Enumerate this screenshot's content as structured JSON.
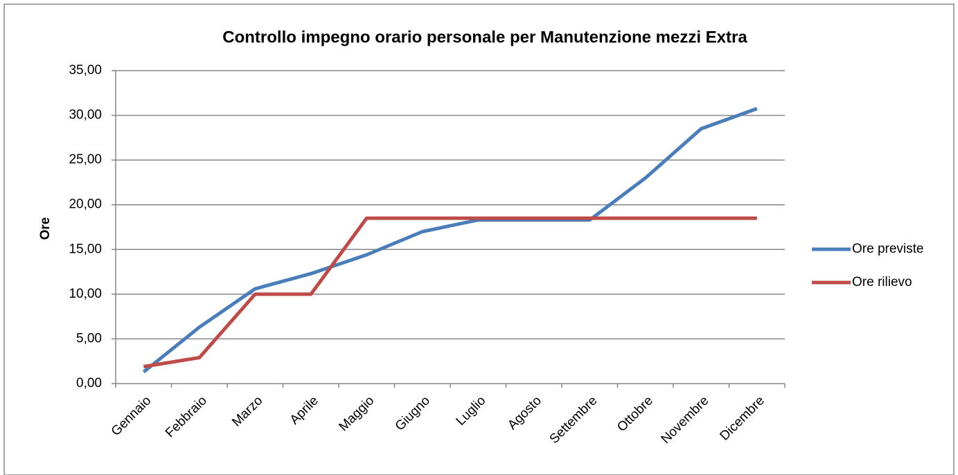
{
  "chart_data": {
    "type": "line",
    "title": "Controllo impegno orario personale per Manutenzione mezzi Extra",
    "y_label": "Ore",
    "categories": [
      "Gennaio",
      "Febbraio",
      "Marzo",
      "Aprile",
      "Maggio",
      "Giugno",
      "Luglio",
      "Agosto",
      "Settembre",
      "Ottobre",
      "Novembre",
      "Dicembre"
    ],
    "series": [
      {
        "name": "Ore previste",
        "color": "#4a7ebb",
        "values": [
          1.3,
          6.3,
          10.6,
          12.3,
          14.4,
          17.0,
          18.3,
          18.3,
          18.3,
          23.0,
          28.5,
          30.75
        ]
      },
      {
        "name": "Ore rilievo",
        "color": "#be4b48",
        "values": [
          1.9,
          2.9,
          10.0,
          10.0,
          18.5,
          18.5,
          18.5,
          18.5,
          18.5,
          18.5,
          18.5,
          18.5
        ]
      }
    ],
    "ylim": [
      0,
      35
    ],
    "yticks": [
      {
        "value": 0,
        "label": "0,00"
      },
      {
        "value": 5,
        "label": "5,00"
      },
      {
        "value": 10,
        "label": "10,00"
      },
      {
        "value": 15,
        "label": "15,00"
      },
      {
        "value": 20,
        "label": "20,00"
      },
      {
        "value": 25,
        "label": "25,00"
      },
      {
        "value": 30,
        "label": "30,00"
      },
      {
        "value": 35,
        "label": "35,00"
      }
    ],
    "grid": true,
    "legend": "right"
  }
}
